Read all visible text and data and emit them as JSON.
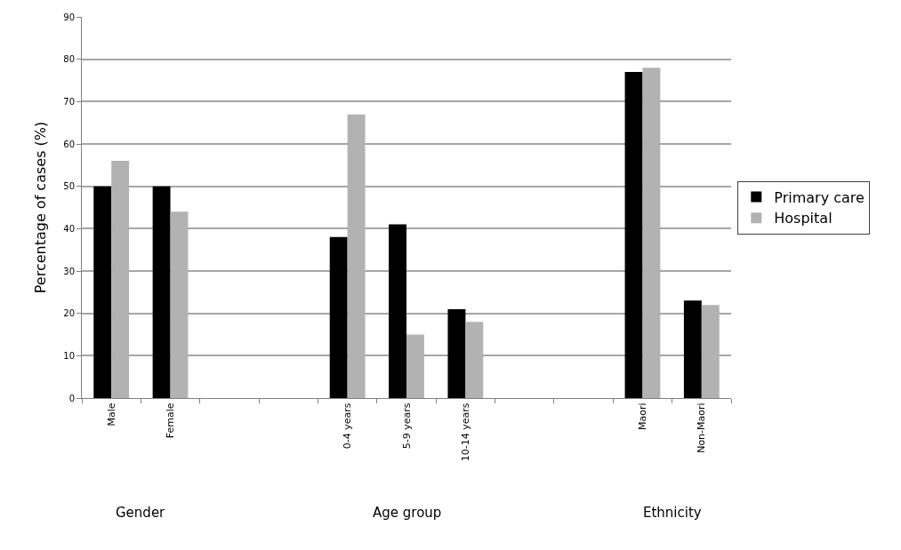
{
  "chart_data": {
    "type": "bar",
    "ylabel": "Percentage of cases (%)",
    "categories": [
      "Male",
      "Female",
      null,
      null,
      "0-4 years",
      "5-9 years",
      "10-14 years",
      null,
      null,
      "Maori",
      "Non-Maori"
    ],
    "series": [
      {
        "name": "Primary care",
        "color": "#000000",
        "values": [
          50,
          50,
          null,
          null,
          38,
          41,
          21,
          null,
          null,
          77,
          23
        ]
      },
      {
        "name": "Hospital",
        "color": "#b2b2b2",
        "values": [
          56,
          44,
          null,
          null,
          67,
          15,
          18,
          null,
          null,
          78,
          22
        ]
      }
    ],
    "annotations": [
      "Gender",
      "Age group",
      "Ethnicity"
    ],
    "ylim": [
      0,
      90
    ],
    "yticks": [
      0,
      10,
      20,
      30,
      40,
      50,
      60,
      70,
      80,
      90
    ],
    "grid": "y",
    "legend": "right"
  }
}
